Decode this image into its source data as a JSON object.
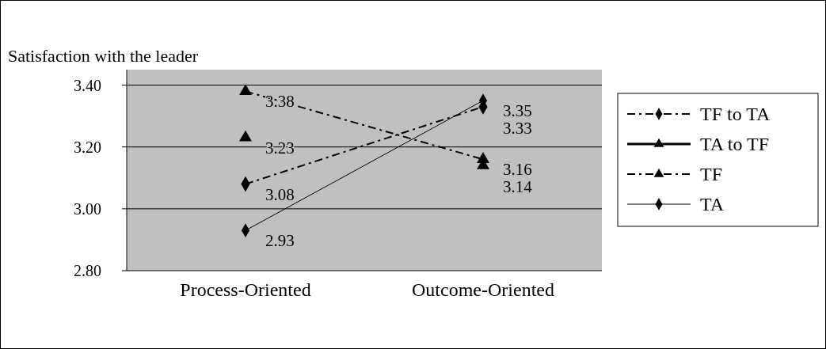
{
  "chart_data": {
    "type": "line",
    "title": "Satisfaction with the leader",
    "categories": [
      "Process-Oriented",
      "Outcome-Oriented"
    ],
    "series": [
      {
        "name": "TF to TA",
        "color": "#000000",
        "values": [
          3.08,
          3.33
        ],
        "marker": "diamond",
        "line_style": "dashdot"
      },
      {
        "name": "TA to TF",
        "type": "scatter",
        "color": "#000000",
        "values": [
          3.23,
          3.14
        ],
        "marker": "triangle",
        "line_style": "solid"
      },
      {
        "name": "TF",
        "color": "#000000",
        "values": [
          3.38,
          3.16
        ],
        "marker": "triangle",
        "line_style": "dashdot"
      },
      {
        "name": "TA",
        "color": "#000000",
        "values": [
          2.93,
          3.35
        ],
        "marker": "diamond",
        "line_style": "solid"
      }
    ],
    "ylim": [
      2.8,
      3.45
    ],
    "yticks": [
      {
        "value": 2.8,
        "label": "2.80"
      },
      {
        "value": 3.0,
        "label": "3.00"
      },
      {
        "value": 3.2,
        "label": "3.20"
      },
      {
        "value": 3.4,
        "label": "3.40"
      }
    ],
    "grid": "y",
    "legend": "right",
    "data_labels": true
  }
}
